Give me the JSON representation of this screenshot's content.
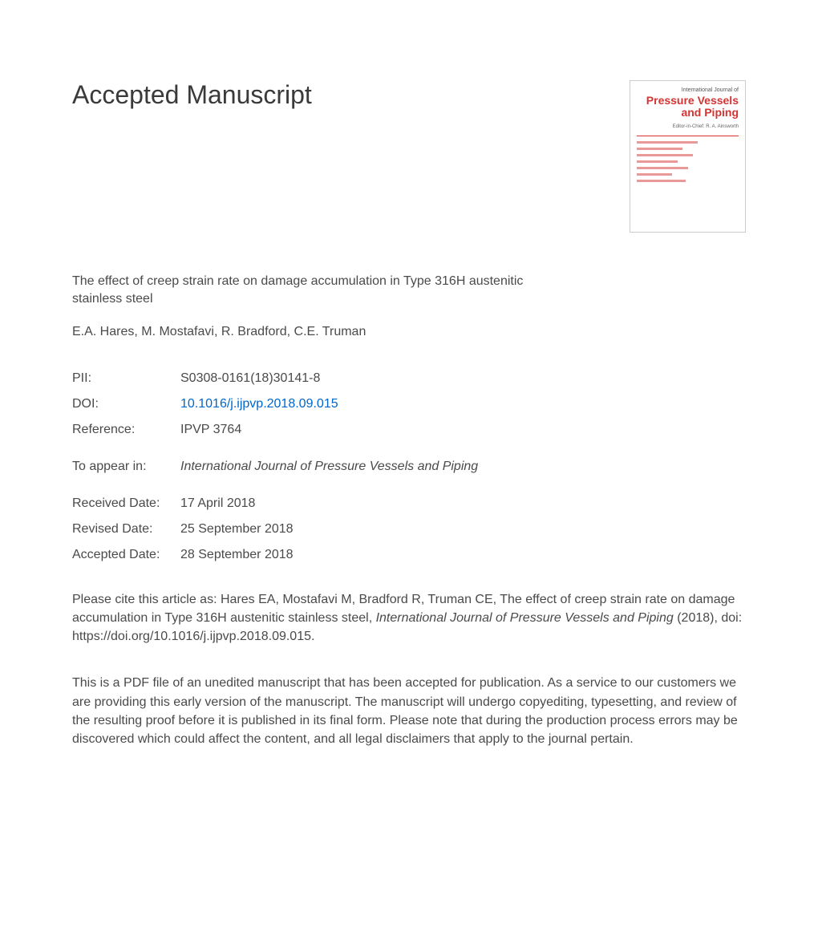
{
  "header": {
    "title": "Accepted Manuscript"
  },
  "cover": {
    "journal_label": "International Journal of",
    "title_line1": "Pressure Vessels",
    "title_line2": "and Piping",
    "subtitle": "Editor-in-Chief: R. A. Ainsworth"
  },
  "article": {
    "title": "The effect of creep strain rate on damage accumulation in Type 316H austenitic stainless steel",
    "authors": "E.A. Hares, M. Mostafavi, R. Bradford, C.E. Truman"
  },
  "metadata": {
    "pii": {
      "label": "PII:",
      "value": "S0308-0161(18)30141-8"
    },
    "doi": {
      "label": "DOI:",
      "value": "10.1016/j.ijpvp.2018.09.015"
    },
    "reference": {
      "label": "Reference:",
      "value": "IPVP 3764"
    },
    "appear": {
      "label": "To appear in:",
      "value": "International Journal of Pressure Vessels and Piping"
    },
    "received": {
      "label": "Received Date:",
      "value": "17 April 2018"
    },
    "revised": {
      "label": "Revised Date:",
      "value": "25 September 2018"
    },
    "accepted": {
      "label": "Accepted Date:",
      "value": "28 September 2018"
    }
  },
  "citation": {
    "prefix": "Please cite this article as: Hares EA, Mostafavi M, Bradford R, Truman CE, The effect of creep strain rate on damage accumulation in Type 316H austenitic stainless steel, ",
    "journal": "International Journal of Pressure Vessels and Piping",
    "suffix": " (2018), doi: https://doi.org/10.1016/j.ijpvp.2018.09.015."
  },
  "disclaimer": "This is a PDF file of an unedited manuscript that has been accepted for publication. As a service to our customers we are providing this early version of the manuscript. The manuscript will undergo copyediting, typesetting, and review of the resulting proof before it is published in its final form. Please note that during the production process errors may be discovered which could affect the content, and all legal disclaimers that apply to the journal pertain."
}
